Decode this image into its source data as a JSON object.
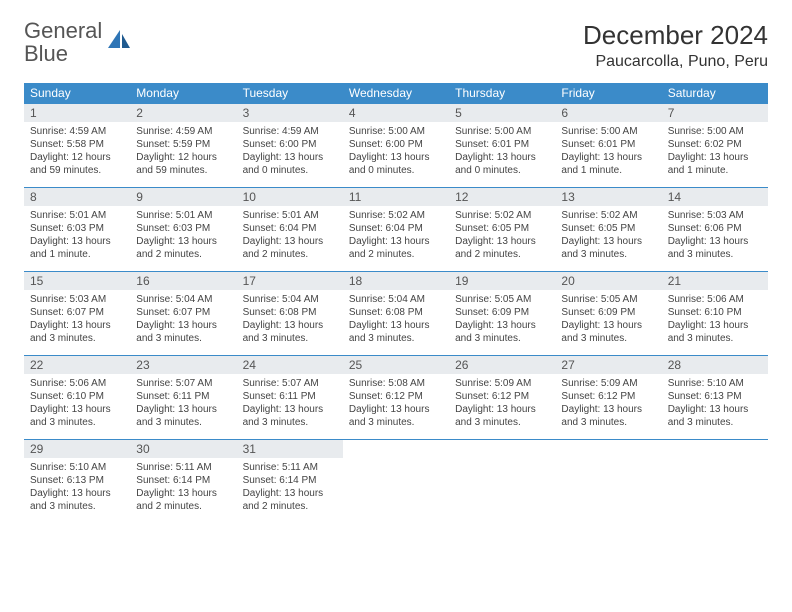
{
  "brand": {
    "text1": "General",
    "text2": "Blue"
  },
  "title": "December 2024",
  "location": "Paucarcolla, Puno, Peru",
  "colors": {
    "header_bg": "#3b8bc9",
    "daynum_bg": "#e8ebee",
    "brand_blue": "#2e75b6",
    "text": "#333333"
  },
  "weekdays": [
    "Sunday",
    "Monday",
    "Tuesday",
    "Wednesday",
    "Thursday",
    "Friday",
    "Saturday"
  ],
  "weeks": [
    [
      {
        "n": "1",
        "sunrise": "4:59 AM",
        "sunset": "5:58 PM",
        "daylight": "12 hours and 59 minutes."
      },
      {
        "n": "2",
        "sunrise": "4:59 AM",
        "sunset": "5:59 PM",
        "daylight": "12 hours and 59 minutes."
      },
      {
        "n": "3",
        "sunrise": "4:59 AM",
        "sunset": "6:00 PM",
        "daylight": "13 hours and 0 minutes."
      },
      {
        "n": "4",
        "sunrise": "5:00 AM",
        "sunset": "6:00 PM",
        "daylight": "13 hours and 0 minutes."
      },
      {
        "n": "5",
        "sunrise": "5:00 AM",
        "sunset": "6:01 PM",
        "daylight": "13 hours and 0 minutes."
      },
      {
        "n": "6",
        "sunrise": "5:00 AM",
        "sunset": "6:01 PM",
        "daylight": "13 hours and 1 minute."
      },
      {
        "n": "7",
        "sunrise": "5:00 AM",
        "sunset": "6:02 PM",
        "daylight": "13 hours and 1 minute."
      }
    ],
    [
      {
        "n": "8",
        "sunrise": "5:01 AM",
        "sunset": "6:03 PM",
        "daylight": "13 hours and 1 minute."
      },
      {
        "n": "9",
        "sunrise": "5:01 AM",
        "sunset": "6:03 PM",
        "daylight": "13 hours and 2 minutes."
      },
      {
        "n": "10",
        "sunrise": "5:01 AM",
        "sunset": "6:04 PM",
        "daylight": "13 hours and 2 minutes."
      },
      {
        "n": "11",
        "sunrise": "5:02 AM",
        "sunset": "6:04 PM",
        "daylight": "13 hours and 2 minutes."
      },
      {
        "n": "12",
        "sunrise": "5:02 AM",
        "sunset": "6:05 PM",
        "daylight": "13 hours and 2 minutes."
      },
      {
        "n": "13",
        "sunrise": "5:02 AM",
        "sunset": "6:05 PM",
        "daylight": "13 hours and 3 minutes."
      },
      {
        "n": "14",
        "sunrise": "5:03 AM",
        "sunset": "6:06 PM",
        "daylight": "13 hours and 3 minutes."
      }
    ],
    [
      {
        "n": "15",
        "sunrise": "5:03 AM",
        "sunset": "6:07 PM",
        "daylight": "13 hours and 3 minutes."
      },
      {
        "n": "16",
        "sunrise": "5:04 AM",
        "sunset": "6:07 PM",
        "daylight": "13 hours and 3 minutes."
      },
      {
        "n": "17",
        "sunrise": "5:04 AM",
        "sunset": "6:08 PM",
        "daylight": "13 hours and 3 minutes."
      },
      {
        "n": "18",
        "sunrise": "5:04 AM",
        "sunset": "6:08 PM",
        "daylight": "13 hours and 3 minutes."
      },
      {
        "n": "19",
        "sunrise": "5:05 AM",
        "sunset": "6:09 PM",
        "daylight": "13 hours and 3 minutes."
      },
      {
        "n": "20",
        "sunrise": "5:05 AM",
        "sunset": "6:09 PM",
        "daylight": "13 hours and 3 minutes."
      },
      {
        "n": "21",
        "sunrise": "5:06 AM",
        "sunset": "6:10 PM",
        "daylight": "13 hours and 3 minutes."
      }
    ],
    [
      {
        "n": "22",
        "sunrise": "5:06 AM",
        "sunset": "6:10 PM",
        "daylight": "13 hours and 3 minutes."
      },
      {
        "n": "23",
        "sunrise": "5:07 AM",
        "sunset": "6:11 PM",
        "daylight": "13 hours and 3 minutes."
      },
      {
        "n": "24",
        "sunrise": "5:07 AM",
        "sunset": "6:11 PM",
        "daylight": "13 hours and 3 minutes."
      },
      {
        "n": "25",
        "sunrise": "5:08 AM",
        "sunset": "6:12 PM",
        "daylight": "13 hours and 3 minutes."
      },
      {
        "n": "26",
        "sunrise": "5:09 AM",
        "sunset": "6:12 PM",
        "daylight": "13 hours and 3 minutes."
      },
      {
        "n": "27",
        "sunrise": "5:09 AM",
        "sunset": "6:12 PM",
        "daylight": "13 hours and 3 minutes."
      },
      {
        "n": "28",
        "sunrise": "5:10 AM",
        "sunset": "6:13 PM",
        "daylight": "13 hours and 3 minutes."
      }
    ],
    [
      {
        "n": "29",
        "sunrise": "5:10 AM",
        "sunset": "6:13 PM",
        "daylight": "13 hours and 3 minutes."
      },
      {
        "n": "30",
        "sunrise": "5:11 AM",
        "sunset": "6:14 PM",
        "daylight": "13 hours and 2 minutes."
      },
      {
        "n": "31",
        "sunrise": "5:11 AM",
        "sunset": "6:14 PM",
        "daylight": "13 hours and 2 minutes."
      },
      null,
      null,
      null,
      null
    ]
  ],
  "labels": {
    "sunrise": "Sunrise:",
    "sunset": "Sunset:",
    "daylight": "Daylight:"
  }
}
